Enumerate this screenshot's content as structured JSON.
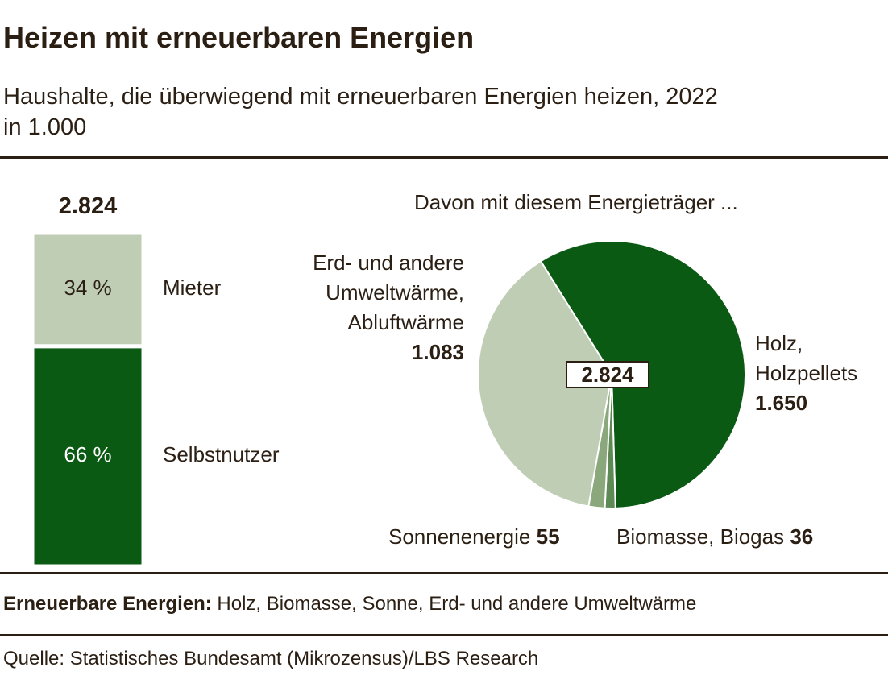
{
  "title": "Heizen mit erneuerbaren Energien",
  "subtitle": [
    "Haushalte, die überwiegend mit erneuerbaren Energien heizen, 2022",
    "in 1.000"
  ],
  "footnote": {
    "label": "Erneuerbare Energien:",
    "text": "Holz, Biomasse, Sonne, Erd- und andere Umweltwärme"
  },
  "source": "Quelle: Statistisches Bundesamt (Mikrozensus)/LBS Research",
  "chart_data": [
    {
      "type": "bar",
      "stacked": true,
      "total": {
        "value": 2824,
        "label": "2.824"
      },
      "ylim": [
        0,
        100
      ],
      "series": [
        {
          "name": "Selbstnutzer",
          "color": "#0b5a14",
          "values": [
            66
          ],
          "value_labels": [
            "66 %"
          ]
        },
        {
          "name": "Mieter",
          "color": "#c0cdb5",
          "values": [
            34
          ],
          "value_labels": [
            "34 %"
          ]
        }
      ]
    },
    {
      "type": "pie",
      "title": "Davon mit diesem Energieträger ...",
      "total": {
        "value": 2824,
        "label": "2.824"
      },
      "categories": [
        "Holz, Holzpellets",
        "Biomasse, Biogas",
        "Sonnenenergie",
        "Erd- und andere Umweltwärme, Abluftwärme"
      ],
      "values": [
        1650,
        36,
        55,
        1083
      ],
      "value_labels": [
        "1.650",
        "36",
        "55",
        "1.083"
      ],
      "colors": [
        "#0b5a14",
        "#5d8a54",
        "#8aa87c",
        "#c0cdb5"
      ]
    }
  ]
}
